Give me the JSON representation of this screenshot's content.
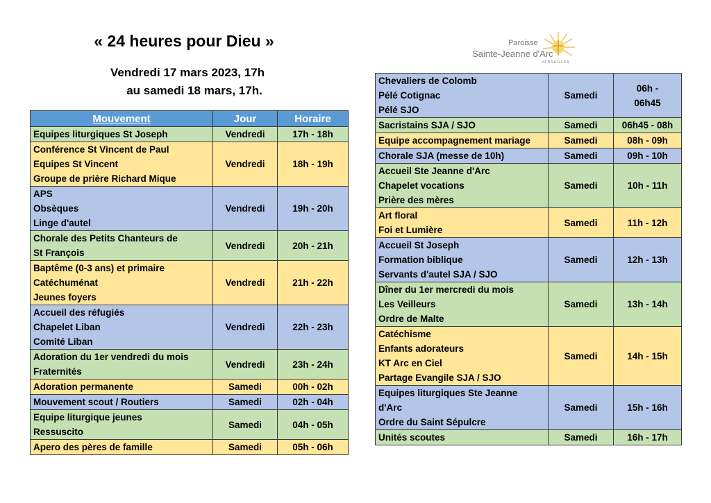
{
  "header": {
    "title": "« 24 heures pour Dieu »",
    "subtitle_line1": "Vendredi 17 mars 2023, 17h",
    "subtitle_line2": "au samedi 18 mars, 17h."
  },
  "logo": {
    "line1": "Paroisse",
    "line2": "Sainte-Jeanne d'Arc",
    "line3": "VERSAILLES",
    "icon": "sun-cross-icon"
  },
  "colors": {
    "header": "#5b9bd5",
    "green": "#c5e0b3",
    "yellow": "#ffe699",
    "blue": "#b4c6e7"
  },
  "columns": {
    "mouvement": "Mouvement",
    "jour": "Jour",
    "horaire": "Horaire"
  },
  "left_rows": [
    {
      "lines": [
        "Equipes liturgiques St Joseph"
      ],
      "jour": "Vendredi",
      "horaire": "17h - 18h",
      "color": "green"
    },
    {
      "lines": [
        "Conférence St Vincent de Paul",
        "Equipes St Vincent",
        "Groupe de prière Richard Mique"
      ],
      "jour": "Vendredi",
      "horaire": "18h - 19h",
      "color": "yellow"
    },
    {
      "lines": [
        "APS",
        "Obsèques",
        "Linge d'autel"
      ],
      "jour": "Vendredi",
      "horaire": "19h - 20h",
      "color": "blue"
    },
    {
      "lines": [
        "Chorale des Petits Chanteurs de",
        "St François"
      ],
      "jour": "Vendredi",
      "horaire": "20h - 21h",
      "color": "green"
    },
    {
      "lines": [
        "Baptême (0-3 ans) et primaire",
        "Catéchuménat",
        "Jeunes foyers"
      ],
      "jour": "Vendredi",
      "horaire": "21h - 22h",
      "color": "yellow"
    },
    {
      "lines": [
        "Accueil des réfugiés",
        "Chapelet Liban",
        "Comité Liban"
      ],
      "jour": "Vendredi",
      "horaire": "22h - 23h",
      "color": "blue"
    },
    {
      "lines": [
        "Adoration du 1er vendredi du mois",
        "Fraternités"
      ],
      "jour": "Vendredi",
      "horaire": "23h - 24h",
      "color": "green"
    },
    {
      "lines": [
        "Adoration permanente"
      ],
      "jour": "Samedi",
      "horaire": "00h - 02h",
      "color": "yellow"
    },
    {
      "lines": [
        "Mouvement scout / Routiers"
      ],
      "jour": "Samedi",
      "horaire": "02h - 04h",
      "color": "blue"
    },
    {
      "lines": [
        "Equipe liturgique jeunes",
        "Ressuscito"
      ],
      "jour": "Samedi",
      "horaire": "04h - 05h",
      "color": "green"
    },
    {
      "lines": [
        "Apero des pères de famille"
      ],
      "jour": "Samedi",
      "horaire": "05h - 06h",
      "color": "yellow"
    }
  ],
  "right_rows": [
    {
      "lines": [
        "Chevaliers de Colomb",
        "Pélé Cotignac",
        "Pélé SJO"
      ],
      "jour": "Samedi",
      "horaire": "06h -\n06h45",
      "color": "blue"
    },
    {
      "lines": [
        "Sacristains SJA / SJO"
      ],
      "jour": "Samedi",
      "horaire": "06h45 - 08h",
      "color": "green"
    },
    {
      "lines": [
        "Equipe accompagnement mariage"
      ],
      "jour": "Samedi",
      "horaire": "08h - 09h",
      "color": "yellow"
    },
    {
      "lines": [
        "Chorale SJA (messe de 10h)"
      ],
      "jour": "Samedi",
      "horaire": "09h - 10h",
      "color": "blue"
    },
    {
      "lines": [
        "Accueil Ste Jeanne d'Arc",
        "Chapelet vocations",
        "Prière des mères"
      ],
      "jour": "Samedi",
      "horaire": "10h - 11h",
      "color": "green"
    },
    {
      "lines": [
        "Art floral",
        "Foi et Lumière"
      ],
      "jour": "Samedi",
      "horaire": "11h - 12h",
      "color": "yellow"
    },
    {
      "lines": [
        "Accueil St Joseph",
        "Formation biblique",
        "Servants d'autel SJA / SJO"
      ],
      "jour": "Samedi",
      "horaire": "12h - 13h",
      "color": "blue"
    },
    {
      "lines": [
        "Dîner du 1er mercredi du mois",
        "Les Veilleurs",
        "Ordre de Malte"
      ],
      "jour": "Samedi",
      "horaire": "13h - 14h",
      "color": "green"
    },
    {
      "lines": [
        "Catéchisme",
        "Enfants adorateurs",
        "KT Arc en Ciel",
        "Partage Evangile SJA / SJO"
      ],
      "jour": "Samedi",
      "horaire": "14h - 15h",
      "color": "yellow"
    },
    {
      "lines": [
        "Equipes liturgiques Ste Jeanne",
        "d'Arc",
        "Ordre du Saint Sépulcre"
      ],
      "jour": "Samedi",
      "horaire": "15h - 16h",
      "color": "blue"
    },
    {
      "lines": [
        "Unités scoutes"
      ],
      "jour": "Samedi",
      "horaire": "16h - 17h",
      "color": "green"
    }
  ]
}
